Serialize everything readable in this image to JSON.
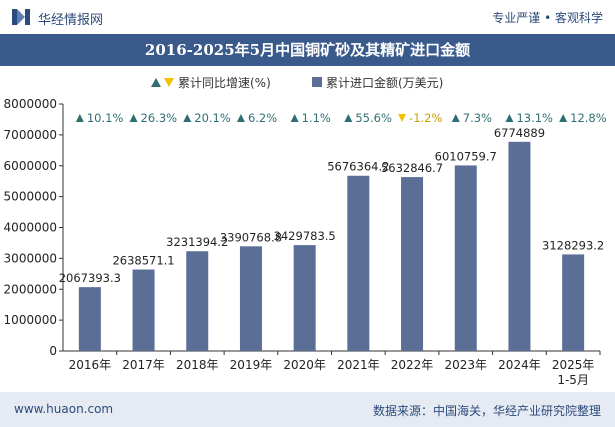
{
  "header": {
    "brand": "华经情报网",
    "tagline": "专业严谨 • 客观科学"
  },
  "footer": {
    "site": "www.huaon.com",
    "source": "数据来源：中国海关，华经产业研究院整理"
  },
  "colors": {
    "bar": "#5b6e96",
    "title_bg": "#3a5a8c",
    "up": "#2f6f73",
    "down": "#f2c200",
    "footer_bg": "#e6ebf3"
  },
  "chart_data": {
    "type": "bar",
    "title": "2016-2025年5月中国铜矿砂及其精矿进口金额",
    "categories": [
      "2016年",
      "2017年",
      "2018年",
      "2019年",
      "2020年",
      "2021年",
      "2022年",
      "2023年",
      "2024年",
      "2025年\n1-5月"
    ],
    "series": [
      {
        "name": "累计进口金额(万美元)",
        "values": [
          2067393.3,
          2638571.1,
          3231394.2,
          3390768.8,
          3429783.5,
          5676364.2,
          5632846.7,
          6010759.7,
          6774889,
          3128293.2
        ],
        "labels": [
          "2067393.3",
          "2638571.1",
          "3231394.2",
          "3390768.8",
          "3429783.5",
          "5676364.2",
          "5632846.7",
          "6010759.7",
          "6774889",
          "3128293.2"
        ]
      },
      {
        "name": "累计同比增速(%)",
        "values": [
          10.1,
          26.3,
          20.1,
          6.2,
          1.1,
          55.6,
          -1.2,
          7.3,
          13.1,
          12.8
        ],
        "labels": [
          "10.1%",
          "26.3%",
          "20.1%",
          "6.2%",
          "1.1%",
          "55.6%",
          "-1.2%",
          "7.3%",
          "13.1%",
          "12.8%"
        ]
      }
    ],
    "ylim": [
      0,
      8000000
    ],
    "yticks": [
      "0",
      "1000000",
      "2000000",
      "3000000",
      "4000000",
      "5000000",
      "6000000",
      "7000000",
      "8000000"
    ],
    "grid": false,
    "legend_position": "top"
  }
}
